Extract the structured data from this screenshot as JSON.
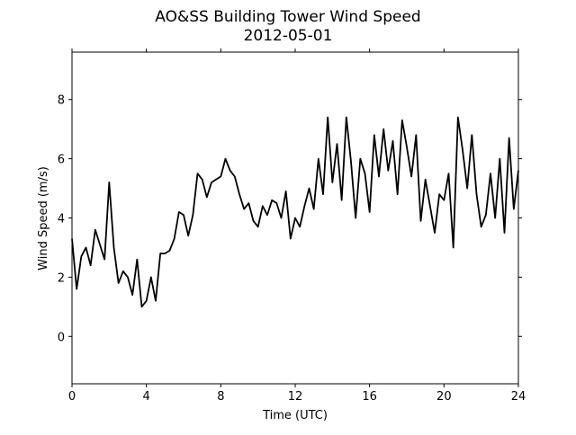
{
  "chart_data": {
    "type": "line",
    "title": "AO&SS Building Tower Wind Speed",
    "subtitle": "2012-05-01",
    "x_label": "Time (UTC)",
    "y_label": "Wind Speed (m/s)",
    "xlim": [
      0,
      24
    ],
    "ylim": [
      -1.6,
      9.6
    ],
    "xticks": [
      0,
      4,
      8,
      12,
      16,
      20,
      24
    ],
    "yticks": [
      0,
      2,
      4,
      6,
      8
    ],
    "grid": false,
    "x": [
      0,
      0.25,
      0.5,
      0.75,
      1,
      1.25,
      1.5,
      1.75,
      2,
      2.25,
      2.5,
      2.75,
      3,
      3.25,
      3.5,
      3.75,
      4,
      4.25,
      4.5,
      4.75,
      5,
      5.25,
      5.5,
      5.75,
      6,
      6.25,
      6.5,
      6.75,
      7,
      7.25,
      7.5,
      7.75,
      8,
      8.25,
      8.5,
      8.75,
      9,
      9.25,
      9.5,
      9.75,
      10,
      10.25,
      10.5,
      10.75,
      11,
      11.25,
      11.5,
      11.75,
      12,
      12.25,
      12.5,
      12.75,
      13,
      13.25,
      13.5,
      13.75,
      14,
      14.25,
      14.5,
      14.75,
      15,
      15.25,
      15.5,
      15.75,
      16,
      16.25,
      16.5,
      16.75,
      17,
      17.25,
      17.5,
      17.75,
      18,
      18.25,
      18.5,
      18.75,
      19,
      19.25,
      19.5,
      19.75,
      20,
      20.25,
      20.5,
      20.75,
      21,
      21.25,
      21.5,
      21.75,
      22,
      22.25,
      22.5,
      22.75,
      23,
      23.25,
      23.5,
      23.75,
      24
    ],
    "series": [
      {
        "color": "#000000",
        "values": [
          3.3,
          1.6,
          2.7,
          3.0,
          2.4,
          3.6,
          3.1,
          2.6,
          5.2,
          3.0,
          1.8,
          2.2,
          2.0,
          1.4,
          2.6,
          1.0,
          1.2,
          2.0,
          1.2,
          2.8,
          2.8,
          2.9,
          3.3,
          4.2,
          4.1,
          3.4,
          4.1,
          5.5,
          5.3,
          4.7,
          5.2,
          5.3,
          5.4,
          6.0,
          5.6,
          5.4,
          4.8,
          4.3,
          4.5,
          3.9,
          3.7,
          4.4,
          4.1,
          4.6,
          4.5,
          4.0,
          4.9,
          3.3,
          4.0,
          3.7,
          4.4,
          5.0,
          4.3,
          6.0,
          4.8,
          7.4,
          5.2,
          6.5,
          4.6,
          7.4,
          5.9,
          4.0,
          6.0,
          5.5,
          4.2,
          6.8,
          5.4,
          7.0,
          5.6,
          6.6,
          4.8,
          7.3,
          6.4,
          5.4,
          6.8,
          3.9,
          5.3,
          4.4,
          3.5,
          4.8,
          4.6,
          5.5,
          3.0,
          7.4,
          6.3,
          5.0,
          6.8,
          4.8,
          3.7,
          4.1,
          5.5,
          4.0,
          6.0,
          3.5,
          6.7,
          4.3,
          5.6
        ]
      }
    ]
  }
}
